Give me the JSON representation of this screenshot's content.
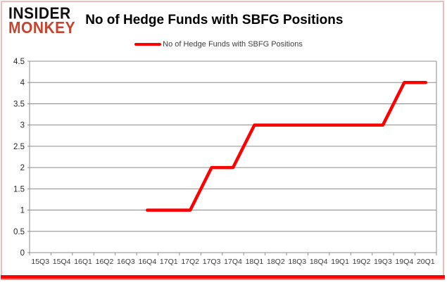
{
  "brand": {
    "line1": "INSIDER",
    "line2": "MONKEY"
  },
  "header": {
    "title": "No of Hedge Funds with SBFG Positions"
  },
  "legend": {
    "label": "No of Hedge Funds with SBFG Positions"
  },
  "colors": {
    "series_red": "#ff0000",
    "logo_red": "#c8432e",
    "grid_gray": "#8c8c8c",
    "axis_text": "#3a3a3a",
    "frame_pink": "#f0bcb8"
  },
  "chart_data": {
    "type": "line",
    "title": "No of Hedge Funds with SBFG Positions",
    "categories": [
      "15Q3",
      "15Q4",
      "16Q1",
      "16Q2",
      "16Q3",
      "16Q4",
      "17Q1",
      "17Q2",
      "17Q3",
      "17Q4",
      "18Q1",
      "18Q2",
      "18Q3",
      "18Q4",
      "19Q1",
      "19Q2",
      "19Q3",
      "19Q4",
      "20Q1"
    ],
    "series": [
      {
        "name": "No of Hedge Funds with SBFG Positions",
        "color": "#ff0000",
        "values": [
          null,
          null,
          null,
          null,
          null,
          1,
          1,
          1,
          2,
          2,
          3,
          3,
          3,
          3,
          3,
          3,
          3,
          4,
          4
        ]
      }
    ],
    "xlabel": "",
    "ylabel": "",
    "ylim": [
      0,
      4.5
    ],
    "ytick_step": 0.5,
    "grid": "horizontal",
    "legend_position": "top-center",
    "markers": false
  }
}
